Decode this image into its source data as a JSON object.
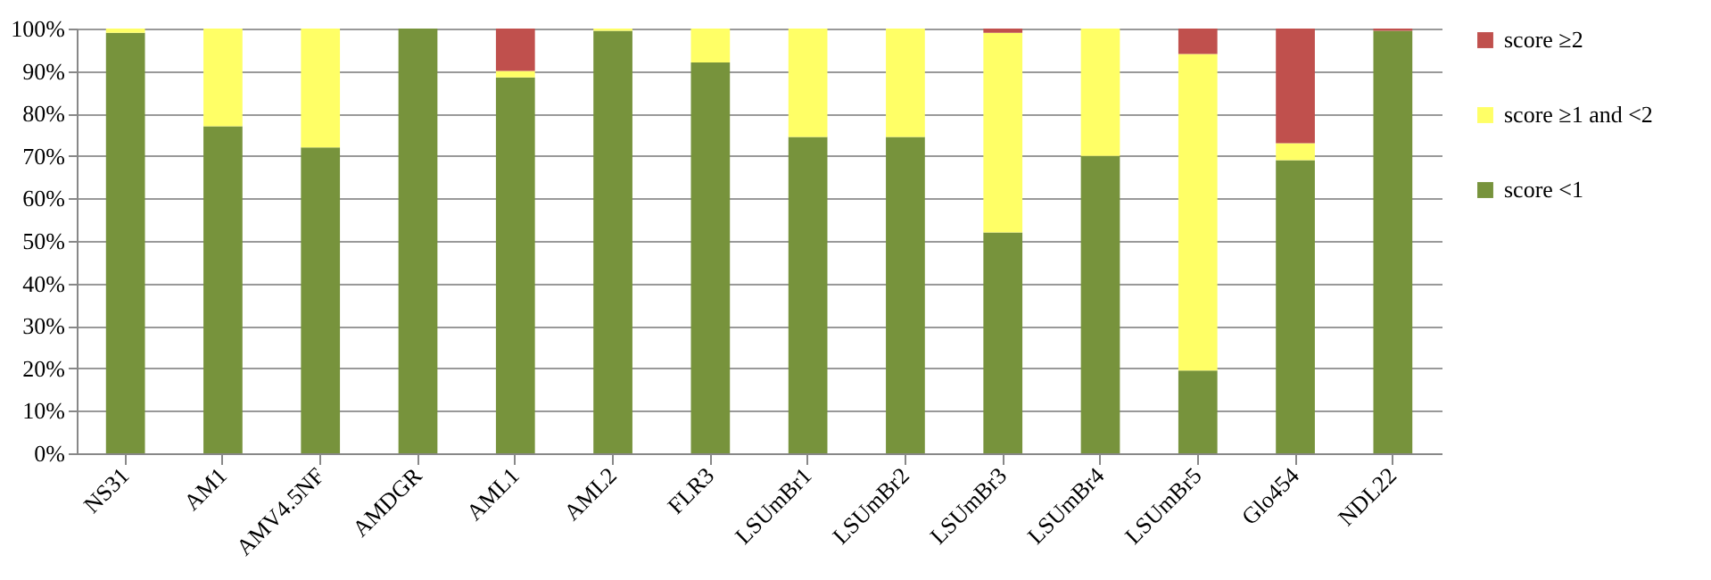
{
  "chart_data": {
    "type": "bar",
    "stacked": true,
    "categories": [
      "NS31",
      "AM1",
      "AMV4.5NF",
      "AMDGR",
      "AML1",
      "AML2",
      "FLR3",
      "LSUmBr1",
      "LSUmBr2",
      "LSUmBr3",
      "LSUmBr4",
      "LSUmBr5",
      "Glo454",
      "NDL22"
    ],
    "series": [
      {
        "name": "score <1",
        "color": "#77933c",
        "values": [
          99,
          77,
          72,
          100,
          88.5,
          99.5,
          92,
          74.5,
          74.5,
          52,
          70,
          19.5,
          69,
          99.5
        ]
      },
      {
        "name": "score ≥1 and <2",
        "color": "#ffff66",
        "values": [
          1,
          23,
          28,
          0,
          1.5,
          0.5,
          8,
          25.5,
          25.5,
          47,
          30,
          74.5,
          4,
          0
        ]
      },
      {
        "name": "score ≥2",
        "color": "#c0504d",
        "values": [
          0,
          0,
          0,
          0,
          10,
          0,
          0,
          0,
          0,
          1,
          0,
          6,
          27,
          0.5
        ]
      }
    ],
    "ylim": [
      0,
      100
    ],
    "yticks": [
      {
        "value": 0,
        "label": "0%"
      },
      {
        "value": 10,
        "label": "10%"
      },
      {
        "value": 20,
        "label": "20%"
      },
      {
        "value": 30,
        "label": "30%"
      },
      {
        "value": 40,
        "label": "40%"
      },
      {
        "value": 50,
        "label": "50%"
      },
      {
        "value": 60,
        "label": "60%"
      },
      {
        "value": 70,
        "label": "70%"
      },
      {
        "value": 80,
        "label": "80%"
      },
      {
        "value": 90,
        "label": "90%"
      },
      {
        "value": 100,
        "label": "100%"
      }
    ],
    "grid": "y",
    "legend": "right"
  }
}
